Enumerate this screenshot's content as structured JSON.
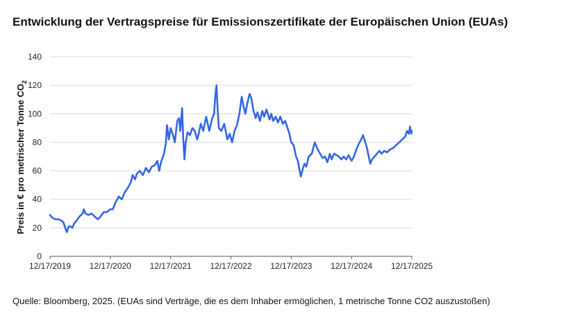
{
  "chart_data": {
    "type": "line",
    "title": "Entwicklung der Vertragspreise für Emissionszertifikate der Europäischen Union (EUAs)",
    "xlabel": "",
    "ylabel_main": "Preis in € pro metrischer Tonne CO",
    "ylabel_sub": "2",
    "ylim": [
      0,
      140
    ],
    "yticks": [
      "0",
      "20",
      "40",
      "60",
      "80",
      "100",
      "120",
      "140"
    ],
    "xlim": [
      2019.96,
      2025.96
    ],
    "xticks": [
      {
        "x": 2019.96,
        "label": "12/17/2019"
      },
      {
        "x": 2020.96,
        "label": "12/17/2020"
      },
      {
        "x": 2021.96,
        "label": "12/17/2021"
      },
      {
        "x": 2022.96,
        "label": "12/17/2022"
      },
      {
        "x": 2023.96,
        "label": "12/17/2023"
      },
      {
        "x": 2024.96,
        "label": "12/17/2024"
      },
      {
        "x": 2025.96,
        "label": "12/17/2025"
      }
    ],
    "grid": true,
    "line_color": "#3366e6",
    "series": [
      {
        "name": "EUA",
        "points": [
          [
            2019.96,
            29
          ],
          [
            2020.0,
            27
          ],
          [
            2020.05,
            26
          ],
          [
            2020.1,
            26
          ],
          [
            2020.15,
            25
          ],
          [
            2020.18,
            24
          ],
          [
            2020.22,
            19
          ],
          [
            2020.24,
            17
          ],
          [
            2020.27,
            21
          ],
          [
            2020.3,
            21
          ],
          [
            2020.33,
            20
          ],
          [
            2020.36,
            23
          ],
          [
            2020.4,
            25
          ],
          [
            2020.45,
            28
          ],
          [
            2020.5,
            30
          ],
          [
            2020.52,
            33
          ],
          [
            2020.55,
            30
          ],
          [
            2020.6,
            29
          ],
          [
            2020.65,
            30
          ],
          [
            2020.7,
            28
          ],
          [
            2020.75,
            26
          ],
          [
            2020.78,
            27
          ],
          [
            2020.85,
            31
          ],
          [
            2020.9,
            31
          ],
          [
            2020.96,
            33
          ],
          [
            2021.0,
            33
          ],
          [
            2021.05,
            38
          ],
          [
            2021.1,
            42
          ],
          [
            2021.15,
            40
          ],
          [
            2021.2,
            45
          ],
          [
            2021.25,
            48
          ],
          [
            2021.3,
            52
          ],
          [
            2021.33,
            57
          ],
          [
            2021.37,
            54
          ],
          [
            2021.4,
            58
          ],
          [
            2021.45,
            60
          ],
          [
            2021.5,
            57
          ],
          [
            2021.55,
            62
          ],
          [
            2021.6,
            59
          ],
          [
            2021.65,
            63
          ],
          [
            2021.7,
            64
          ],
          [
            2021.74,
            67
          ],
          [
            2021.77,
            60
          ],
          [
            2021.8,
            66
          ],
          [
            2021.85,
            72
          ],
          [
            2021.88,
            79
          ],
          [
            2021.9,
            92
          ],
          [
            2021.93,
            82
          ],
          [
            2021.96,
            90
          ],
          [
            2022.0,
            85
          ],
          [
            2022.03,
            80
          ],
          [
            2022.07,
            95
          ],
          [
            2022.1,
            97
          ],
          [
            2022.12,
            88
          ],
          [
            2022.15,
            104
          ],
          [
            2022.17,
            82
          ],
          [
            2022.19,
            68
          ],
          [
            2022.21,
            80
          ],
          [
            2022.24,
            87
          ],
          [
            2022.28,
            85
          ],
          [
            2022.32,
            90
          ],
          [
            2022.36,
            88
          ],
          [
            2022.4,
            82
          ],
          [
            2022.42,
            85
          ],
          [
            2022.46,
            93
          ],
          [
            2022.5,
            88
          ],
          [
            2022.55,
            98
          ],
          [
            2022.6,
            88
          ],
          [
            2022.65,
            97
          ],
          [
            2022.68,
            100
          ],
          [
            2022.7,
            112
          ],
          [
            2022.72,
            120
          ],
          [
            2022.74,
            103
          ],
          [
            2022.76,
            90
          ],
          [
            2022.8,
            88
          ],
          [
            2022.85,
            93
          ],
          [
            2022.9,
            82
          ],
          [
            2022.94,
            86
          ],
          [
            2022.98,
            80
          ],
          [
            2023.02,
            88
          ],
          [
            2023.06,
            92
          ],
          [
            2023.1,
            100
          ],
          [
            2023.14,
            112
          ],
          [
            2023.17,
            105
          ],
          [
            2023.2,
            100
          ],
          [
            2023.23,
            107
          ],
          [
            2023.27,
            114
          ],
          [
            2023.3,
            111
          ],
          [
            2023.33,
            103
          ],
          [
            2023.37,
            97
          ],
          [
            2023.4,
            101
          ],
          [
            2023.44,
            95
          ],
          [
            2023.48,
            102
          ],
          [
            2023.51,
            98
          ],
          [
            2023.55,
            103
          ],
          [
            2023.6,
            96
          ],
          [
            2023.63,
            100
          ],
          [
            2023.66,
            95
          ],
          [
            2023.7,
            98
          ],
          [
            2023.74,
            94
          ],
          [
            2023.78,
            98
          ],
          [
            2023.82,
            93
          ],
          [
            2023.86,
            95
          ],
          [
            2023.9,
            90
          ],
          [
            2023.93,
            86
          ],
          [
            2023.96,
            80
          ],
          [
            2024.0,
            78
          ],
          [
            2024.04,
            70
          ],
          [
            2024.07,
            67
          ],
          [
            2024.1,
            60
          ],
          [
            2024.12,
            56
          ],
          [
            2024.15,
            61
          ],
          [
            2024.18,
            65
          ],
          [
            2024.21,
            63
          ],
          [
            2024.25,
            70
          ],
          [
            2024.3,
            72
          ],
          [
            2024.35,
            80
          ],
          [
            2024.4,
            75
          ],
          [
            2024.44,
            72
          ],
          [
            2024.48,
            69
          ],
          [
            2024.52,
            70
          ],
          [
            2024.56,
            66
          ],
          [
            2024.6,
            72
          ],
          [
            2024.63,
            68
          ],
          [
            2024.67,
            72
          ],
          [
            2024.71,
            71
          ],
          [
            2024.75,
            70
          ],
          [
            2024.79,
            68
          ],
          [
            2024.83,
            70
          ],
          [
            2024.87,
            68
          ],
          [
            2024.91,
            71
          ],
          [
            2024.96,
            67
          ],
          [
            2025.0,
            70
          ],
          [
            2025.04,
            75
          ],
          [
            2025.08,
            79
          ],
          [
            2025.12,
            82
          ],
          [
            2025.15,
            85
          ],
          [
            2025.18,
            81
          ],
          [
            2025.21,
            77
          ],
          [
            2025.24,
            71
          ],
          [
            2025.27,
            65
          ],
          [
            2025.3,
            68
          ],
          [
            2025.34,
            70
          ],
          [
            2025.38,
            72
          ],
          [
            2025.42,
            74
          ],
          [
            2025.46,
            72
          ],
          [
            2025.5,
            74
          ],
          [
            2025.55,
            73
          ],
          [
            2025.6,
            75
          ],
          [
            2025.65,
            76
          ],
          [
            2025.7,
            78
          ],
          [
            2025.75,
            80
          ],
          [
            2025.8,
            82
          ],
          [
            2025.85,
            84
          ],
          [
            2025.88,
            88
          ],
          [
            2025.91,
            86
          ],
          [
            2025.93,
            91
          ],
          [
            2025.95,
            86
          ],
          [
            2025.96,
            88
          ]
        ]
      }
    ]
  },
  "footer": {
    "source": "Quelle: Bloomberg, 2025. (EUAs sind Verträge, die es dem Inhaber ermöglichen, 1 metrische Tonne CO2 auszustoßen)"
  }
}
